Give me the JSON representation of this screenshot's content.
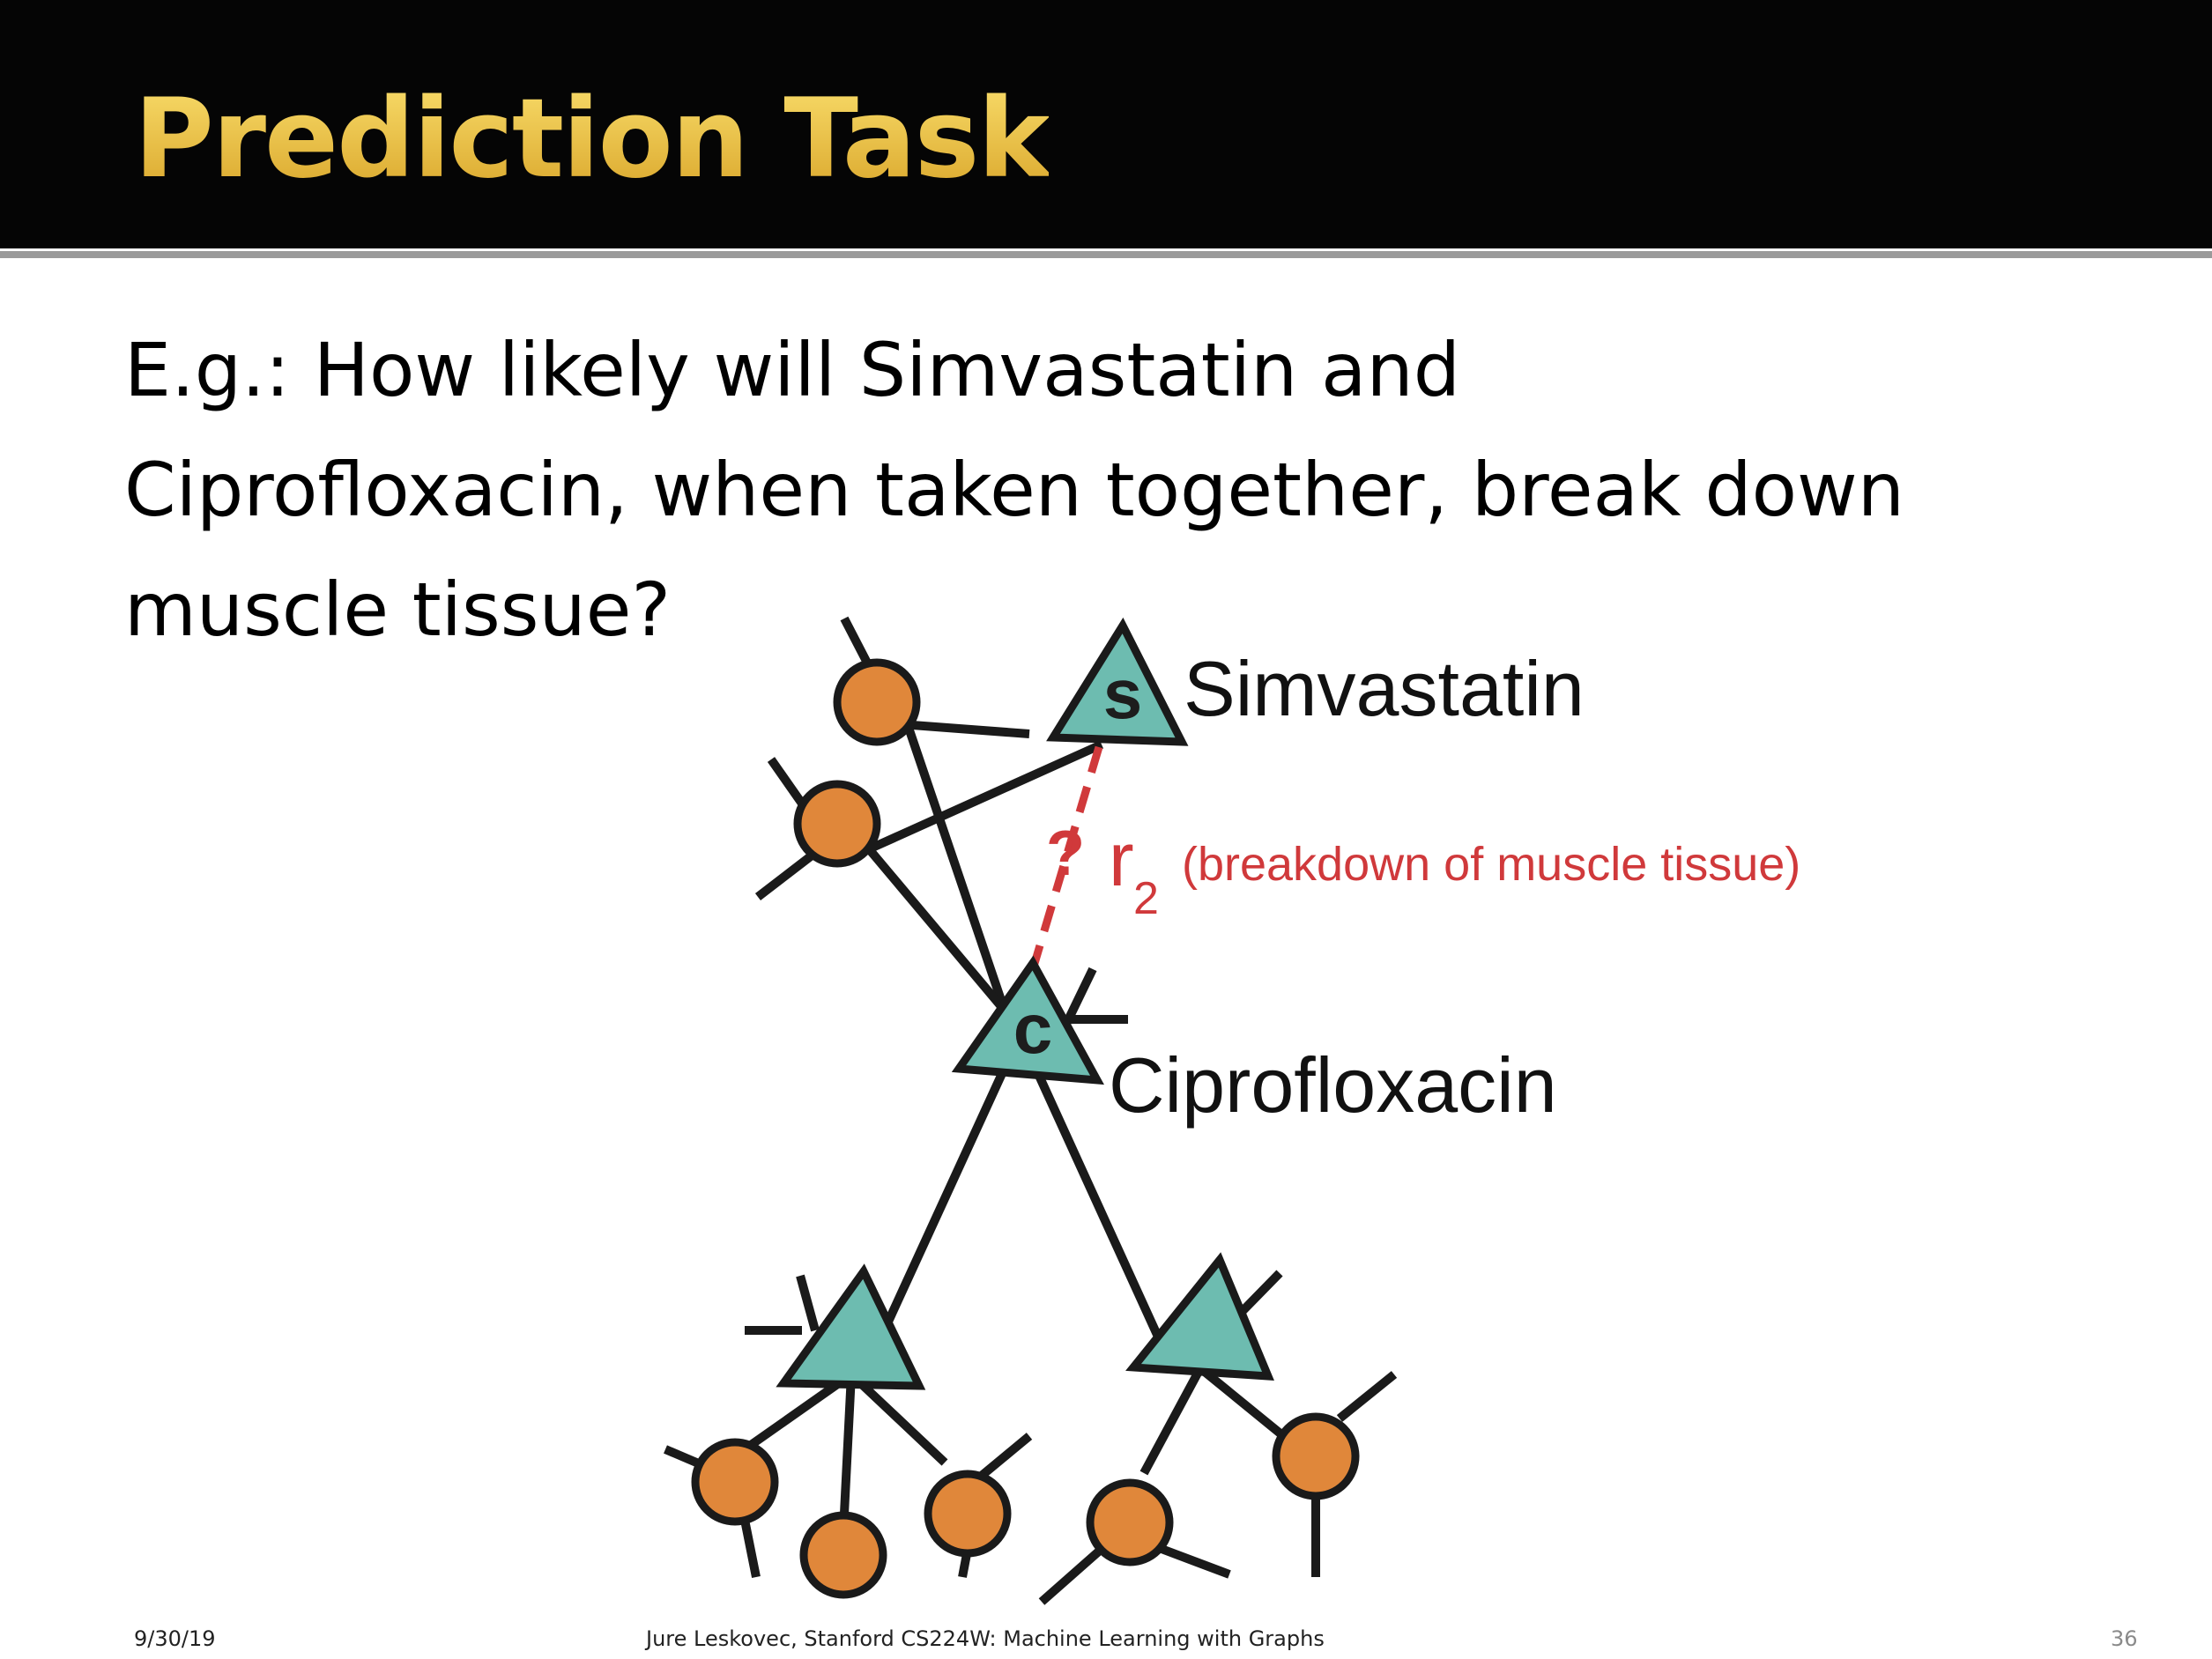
{
  "slide": {
    "title": "Prediction Task",
    "question_lines": [
      "E.g.: How likely will Simvastatin and",
      "Ciprofloxacin, when taken together, break down",
      "muscle tissue?"
    ]
  },
  "diagram": {
    "drug_s": {
      "letter": "s",
      "name": "Simvastatin"
    },
    "drug_c": {
      "letter": "c",
      "name": "Ciprofloxacin"
    },
    "relation": {
      "question_mark": "?",
      "symbol": "r",
      "subscript": "2",
      "description": "(breakdown of muscle tissue)"
    },
    "colors": {
      "drug_node": "#6dbcb0",
      "protein_node": "#e0873a",
      "edge": "#1a1a1a",
      "query_edge": "#d0393b"
    }
  },
  "footer": {
    "date": "9/30/19",
    "credit": "Jure Leskovec, Stanford CS224W: Machine Learning with Graphs",
    "page": "36"
  }
}
